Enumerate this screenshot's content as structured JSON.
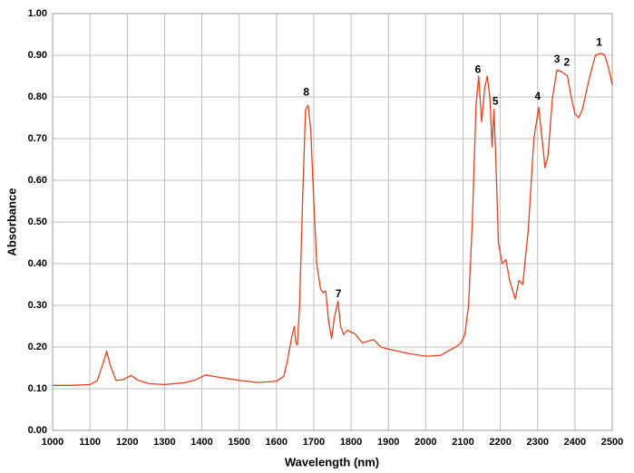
{
  "chart_data": {
    "type": "line",
    "x_label": "Wavelength (nm)",
    "y_label": "Absorbance",
    "color": "#e8401c",
    "grid": true,
    "xlim": [
      1000,
      2500
    ],
    "xticks": [
      1000,
      1100,
      1200,
      1300,
      1400,
      1500,
      1600,
      1700,
      1800,
      1900,
      2000,
      2100,
      2200,
      2300,
      2400,
      2500
    ],
    "ylim": [
      0,
      1
    ],
    "yticks": [
      {
        "value": 0,
        "label": "0.00"
      },
      {
        "value": 0.1,
        "label": "0.10"
      },
      {
        "value": 0.2,
        "label": "0.20"
      },
      {
        "value": 0.3,
        "label": "0.30"
      },
      {
        "value": 0.4,
        "label": "0.40"
      },
      {
        "value": 0.5,
        "label": "0.50"
      },
      {
        "value": 0.6,
        "label": "0.60"
      },
      {
        "value": 0.7,
        "label": "0.70"
      },
      {
        "value": 0.8,
        "label": "0.80"
      },
      {
        "value": 0.9,
        "label": "0.90"
      },
      {
        "value": 1,
        "label": "1.00"
      }
    ],
    "x": [
      1000,
      1050,
      1100,
      1120,
      1135,
      1145,
      1155,
      1170,
      1190,
      1210,
      1230,
      1260,
      1300,
      1350,
      1380,
      1410,
      1450,
      1500,
      1550,
      1600,
      1620,
      1630,
      1640,
      1648,
      1652,
      1656,
      1662,
      1670,
      1678,
      1685,
      1692,
      1700,
      1708,
      1718,
      1725,
      1732,
      1740,
      1748,
      1755,
      1765,
      1772,
      1780,
      1790,
      1810,
      1830,
      1860,
      1880,
      1900,
      1950,
      2000,
      2040,
      2060,
      2080,
      2095,
      2105,
      2115,
      2125,
      2135,
      2142,
      2150,
      2158,
      2165,
      2172,
      2178,
      2183,
      2188,
      2195,
      2205,
      2215,
      2225,
      2240,
      2250,
      2260,
      2275,
      2290,
      2303,
      2312,
      2320,
      2328,
      2340,
      2352,
      2365,
      2380,
      2390,
      2400,
      2410,
      2420,
      2440,
      2455,
      2470,
      2480,
      2490,
      2500
    ],
    "values": [
      0.108,
      0.108,
      0.11,
      0.12,
      0.16,
      0.19,
      0.155,
      0.12,
      0.122,
      0.132,
      0.12,
      0.112,
      0.11,
      0.114,
      0.12,
      0.133,
      0.127,
      0.12,
      0.115,
      0.118,
      0.13,
      0.17,
      0.22,
      0.25,
      0.21,
      0.205,
      0.3,
      0.55,
      0.77,
      0.78,
      0.72,
      0.55,
      0.4,
      0.34,
      0.33,
      0.335,
      0.26,
      0.22,
      0.27,
      0.31,
      0.25,
      0.23,
      0.24,
      0.232,
      0.21,
      0.218,
      0.2,
      0.195,
      0.185,
      0.178,
      0.18,
      0.19,
      0.2,
      0.21,
      0.23,
      0.3,
      0.5,
      0.78,
      0.85,
      0.74,
      0.82,
      0.85,
      0.8,
      0.68,
      0.77,
      0.65,
      0.45,
      0.4,
      0.41,
      0.36,
      0.315,
      0.36,
      0.35,
      0.48,
      0.7,
      0.775,
      0.7,
      0.63,
      0.66,
      0.8,
      0.865,
      0.86,
      0.85,
      0.8,
      0.76,
      0.75,
      0.77,
      0.85,
      0.9,
      0.905,
      0.9,
      0.87,
      0.83
    ],
    "annotations": [
      {
        "text": "1",
        "x": 2465,
        "y": 0.93
      },
      {
        "text": "2",
        "x": 2378,
        "y": 0.882
      },
      {
        "text": "3",
        "x": 2352,
        "y": 0.889
      },
      {
        "text": "4",
        "x": 2300,
        "y": 0.8
      },
      {
        "text": "5",
        "x": 2187,
        "y": 0.788
      },
      {
        "text": "6",
        "x": 2140,
        "y": 0.865
      },
      {
        "text": "7",
        "x": 1766,
        "y": 0.327
      },
      {
        "text": "8",
        "x": 1680,
        "y": 0.81
      }
    ]
  }
}
